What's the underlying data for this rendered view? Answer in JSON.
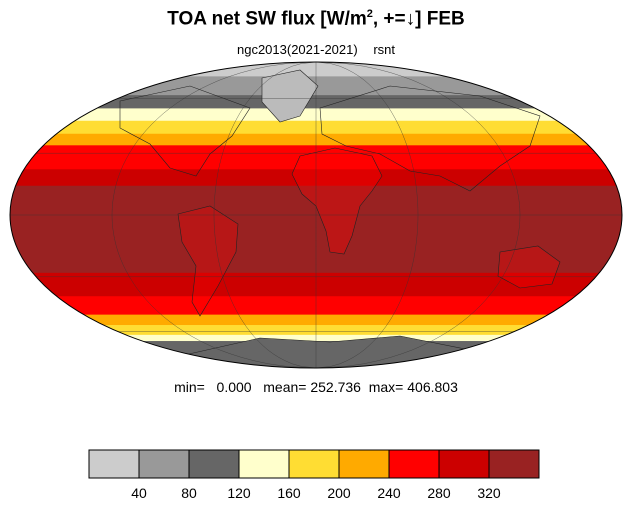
{
  "title": {
    "main": "TOA net SW flux [W/m",
    "sup": "2",
    "rest": ", +=↓]  FEB"
  },
  "subtitle": {
    "case": "ngc2013(2021-2021)",
    "variable": "rsnt"
  },
  "stats": {
    "min_label": "min=",
    "min": "0.000",
    "mean_label": "mean=",
    "mean": "252.736",
    "max_label": "max=",
    "max": "406.803"
  },
  "colorbar": {
    "colors": [
      "#cccccc",
      "#999999",
      "#666666",
      "#ffffcc",
      "#ffdd33",
      "#ffaa00",
      "#ff0000",
      "#cc0000",
      "#992222"
    ],
    "ticks": [
      "40",
      "80",
      "120",
      "160",
      "200",
      "240",
      "280",
      "320"
    ]
  },
  "map": {
    "projection": "mollweide",
    "bands": [
      {
        "lat": [
          75,
          90
        ],
        "color": "#cccccc"
      },
      {
        "lat": [
          62,
          75
        ],
        "color": "#999999"
      },
      {
        "lat": [
          54,
          62
        ],
        "color": "#666666"
      },
      {
        "lat": [
          47,
          54
        ],
        "color": "#ffffcc"
      },
      {
        "lat": [
          40,
          47
        ],
        "color": "#ffdd33"
      },
      {
        "lat": [
          34,
          40
        ],
        "color": "#ffaa00"
      },
      {
        "lat": [
          22,
          34
        ],
        "color": "#ff0000"
      },
      {
        "lat": [
          14,
          22
        ],
        "color": "#cc0000"
      },
      {
        "lat": [
          -28,
          14
        ],
        "color": "#992222"
      },
      {
        "lat": [
          -40,
          -28
        ],
        "color": "#cc0000"
      },
      {
        "lat": [
          -50,
          -40
        ],
        "color": "#ff0000"
      },
      {
        "lat": [
          -56,
          -50
        ],
        "color": "#ffaa00"
      },
      {
        "lat": [
          -62,
          -56
        ],
        "color": "#ffdd33"
      },
      {
        "lat": [
          -66,
          -62
        ],
        "color": "#ffffcc"
      },
      {
        "lat": [
          -90,
          -66
        ],
        "color": "#666666"
      }
    ]
  }
}
